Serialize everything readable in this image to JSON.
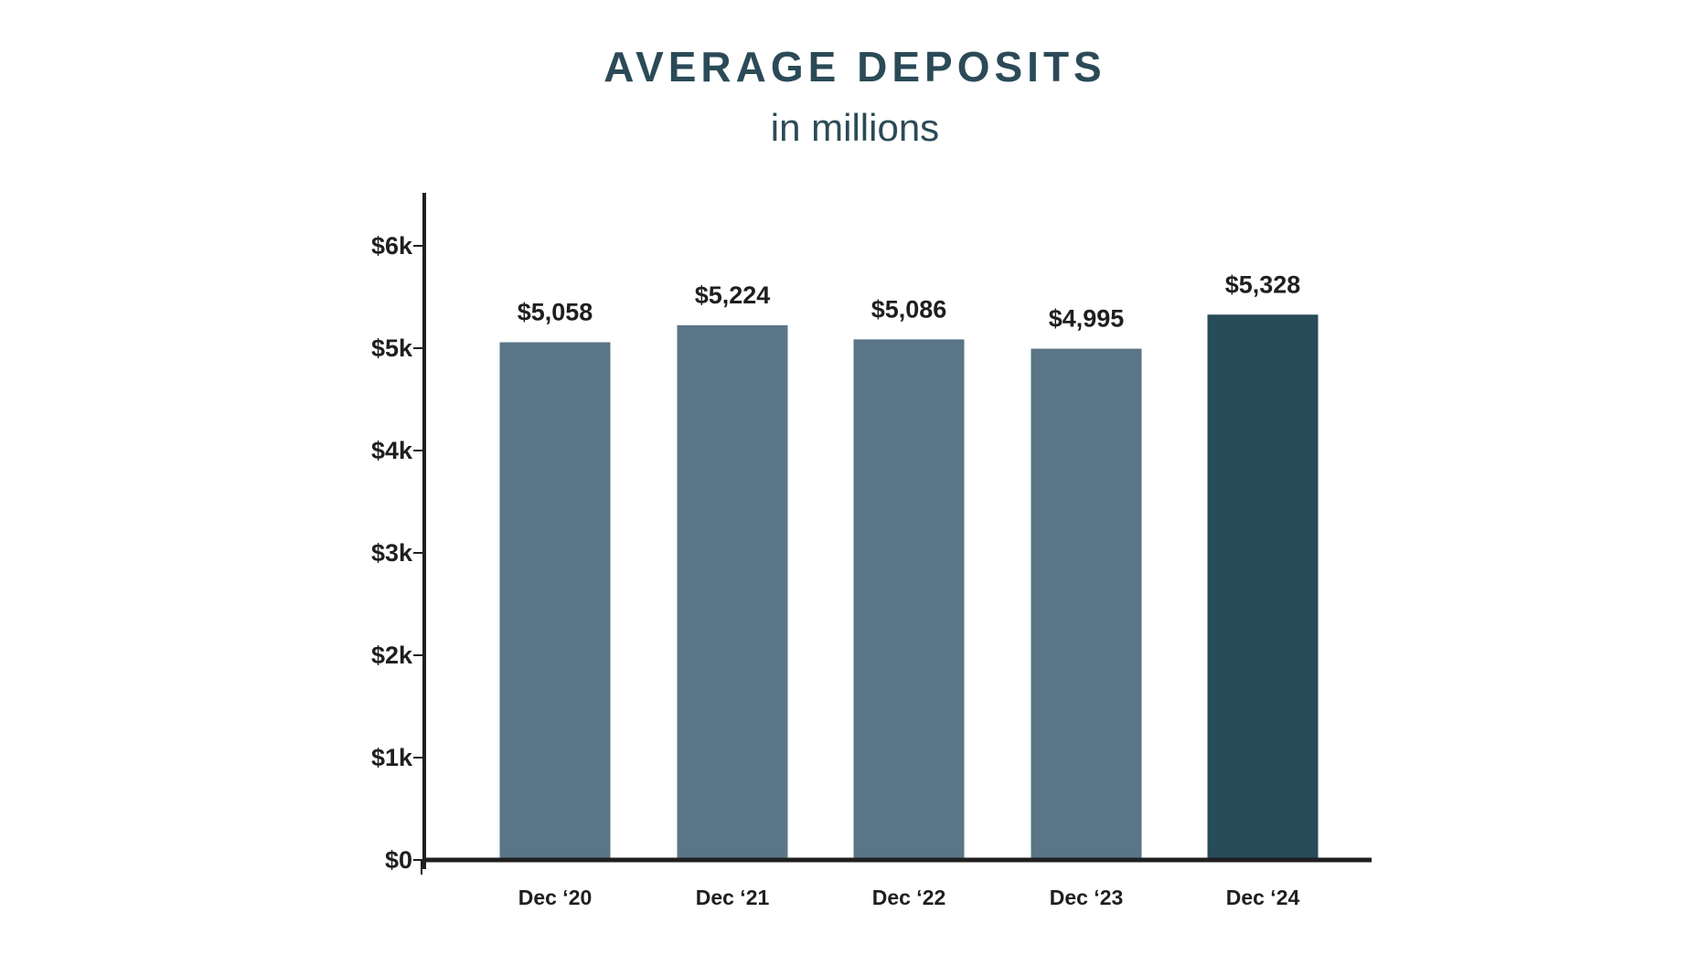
{
  "chart_data": {
    "type": "bar",
    "title": "AVERAGE DEPOSITS",
    "subtitle": "in millions",
    "categories": [
      "Dec ‘20",
      "Dec ‘21",
      "Dec ‘22",
      "Dec ‘23",
      "Dec ‘24"
    ],
    "values": [
      5058,
      5224,
      5086,
      4995,
      5328
    ],
    "data_labels": [
      "$5,058",
      "$5,224",
      "$5,086",
      "$4,995",
      "$5,328"
    ],
    "ylim": [
      0,
      6500
    ],
    "yticks": [
      0,
      1000,
      2000,
      3000,
      4000,
      5000,
      6000
    ],
    "ytick_labels": [
      "$0",
      "$1k",
      "$2k",
      "$3k",
      "$4k",
      "$5k",
      "$6k"
    ],
    "xlabel": "",
    "ylabel": "",
    "grid": false,
    "colors": {
      "title": "#2b4a57",
      "bar": "#5a7587",
      "highlight_bar": "#284b58",
      "axis": "#1f1f1f"
    },
    "highlight_index": 4
  }
}
